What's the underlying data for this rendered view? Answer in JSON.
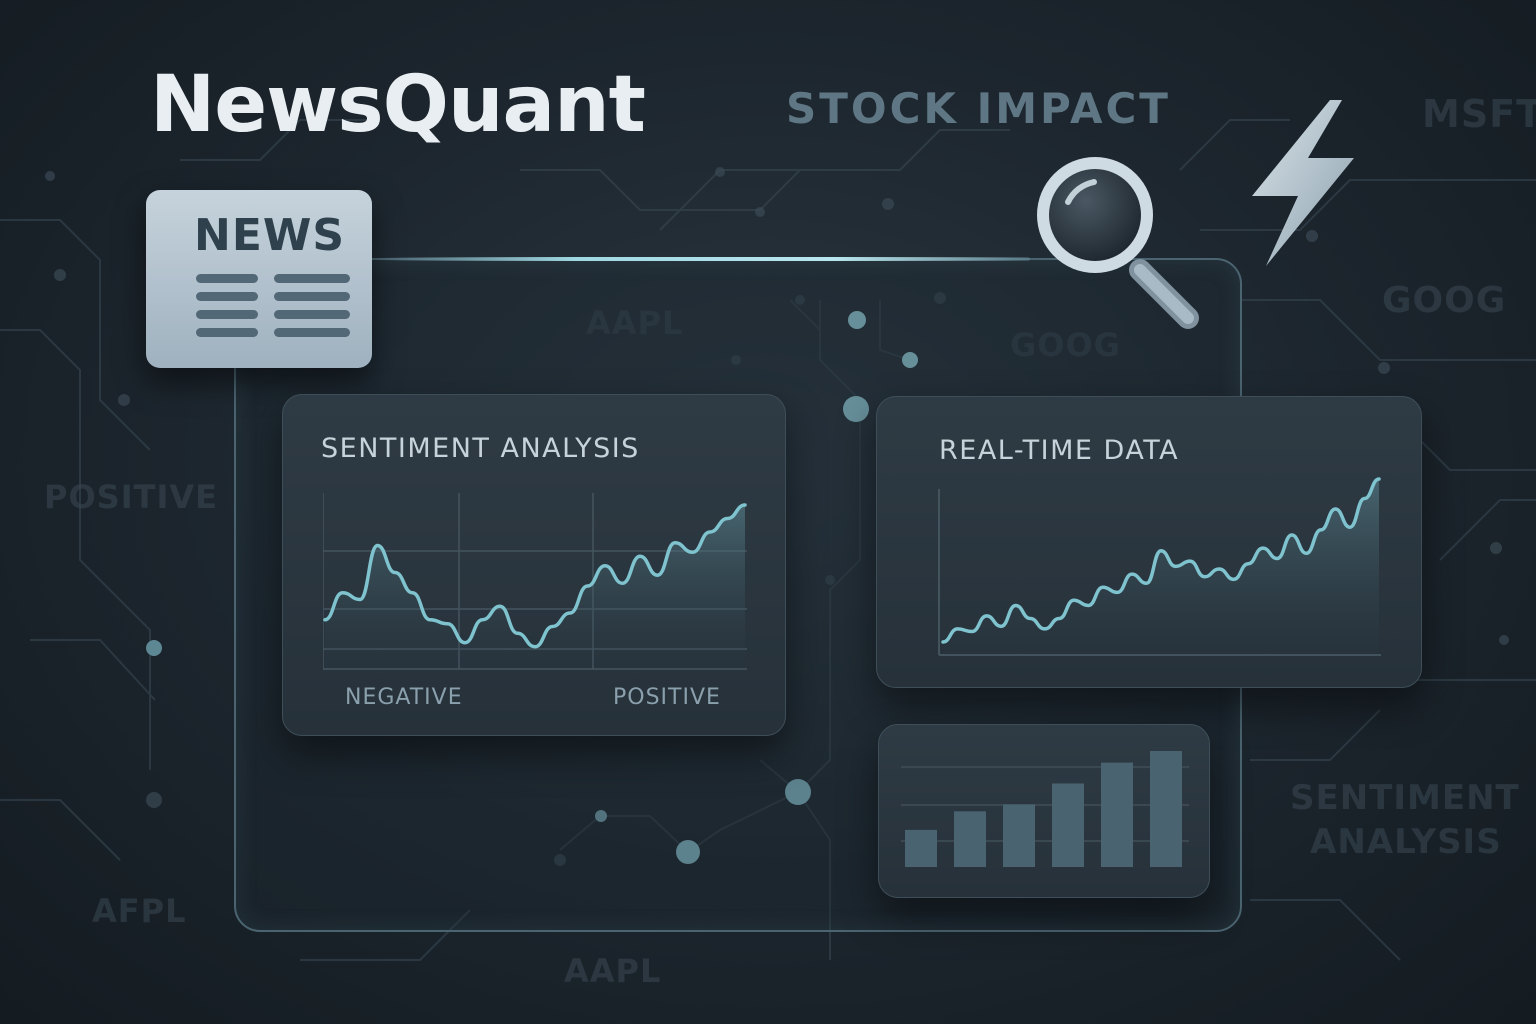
{
  "brand": {
    "name": "NewsQuant"
  },
  "header": {
    "stock_impact": "STOCK IMPACT"
  },
  "news_icon": {
    "label": "NEWS"
  },
  "watermarks": {
    "msft": "MSFT",
    "goog_right": "GOOG",
    "aapl_top": "AAPL",
    "goog_mid": "GOOG",
    "positive_left": "POSITIVE",
    "sentiment_right": "SENTIMENT",
    "analysis_right": "ANALYSIS",
    "afpl": "AFPL",
    "aapl_bottom": "AAPL"
  },
  "sentiment_card": {
    "title": "SENTIMENT ANALYSIS",
    "negative_label": "NEGATIVE",
    "positive_label": "POSITIVE"
  },
  "realtime_card": {
    "title": "REAL-TIME DATA"
  },
  "colors": {
    "background": "#1c252d",
    "accent_line": "#7fc3cf",
    "card": "#2b3740",
    "text_primary": "#e9eef2",
    "bar": "#4a6370"
  },
  "icons": [
    "news-icon",
    "magnifier-icon",
    "lightning-icon",
    "network-node-icon"
  ],
  "chart_data": [
    {
      "type": "area",
      "name": "sentiment",
      "x": [
        0,
        1,
        2,
        3,
        4,
        5,
        6,
        7,
        8,
        9,
        10,
        11,
        12,
        13,
        14,
        15,
        16,
        17,
        18,
        19,
        20,
        21,
        22,
        23,
        24
      ],
      "values": [
        0.35,
        0.55,
        0.5,
        0.9,
        0.7,
        0.55,
        0.35,
        0.32,
        0.18,
        0.35,
        0.45,
        0.25,
        0.15,
        0.3,
        0.4,
        0.6,
        0.75,
        0.62,
        0.82,
        0.68,
        0.92,
        0.85,
        1.0,
        1.1,
        1.2
      ]
    },
    {
      "type": "area",
      "name": "real-time",
      "x": [
        0,
        1,
        2,
        3,
        4,
        5,
        6,
        7,
        8,
        9,
        10,
        11,
        12,
        13,
        14,
        15,
        16,
        17,
        18,
        19,
        20,
        21,
        22,
        23,
        24,
        25,
        26,
        27,
        28,
        29,
        30
      ],
      "values": [
        0.1,
        0.2,
        0.18,
        0.3,
        0.22,
        0.38,
        0.28,
        0.2,
        0.28,
        0.42,
        0.38,
        0.52,
        0.48,
        0.62,
        0.55,
        0.8,
        0.68,
        0.72,
        0.6,
        0.66,
        0.58,
        0.7,
        0.82,
        0.74,
        0.92,
        0.78,
        0.96,
        1.12,
        0.98,
        1.2,
        1.35
      ]
    },
    {
      "type": "bar",
      "name": "impact",
      "categories": [
        "1",
        "2",
        "3",
        "4",
        "5",
        "6"
      ],
      "values": [
        0.32,
        0.48,
        0.54,
        0.72,
        0.9,
        1.0
      ]
    }
  ]
}
